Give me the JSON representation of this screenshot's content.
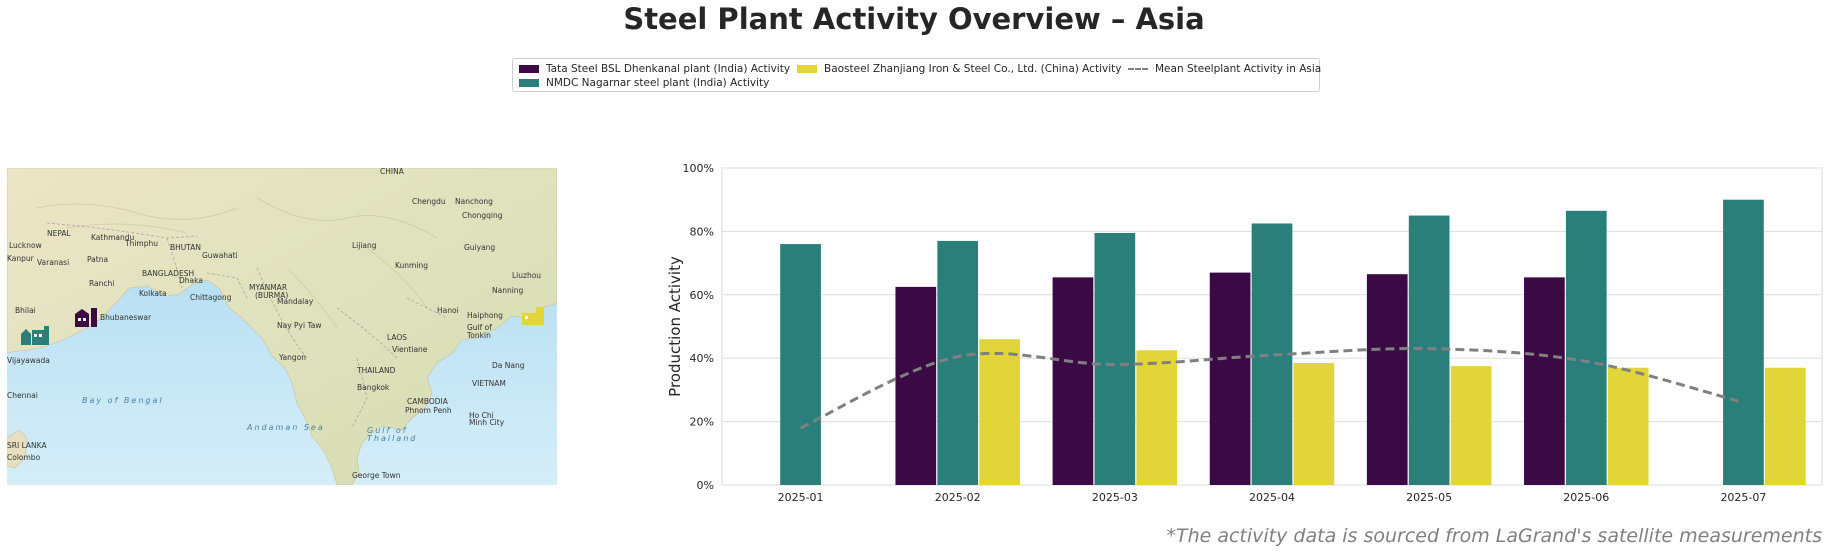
{
  "header": {
    "title": "Steel Plant Activity Overview – Asia"
  },
  "legend": {
    "items": [
      {
        "label": "Tata Steel BSL Dhenkanal plant (India) Activity",
        "color": "#3b0a45",
        "kind": "bar"
      },
      {
        "label": "NMDC Nagarnar steel plant (India) Activity",
        "color": "#2a7f7b",
        "kind": "bar"
      },
      {
        "label": "Baosteel Zhanjiang Iron & Steel Co., Ltd. (China) Activity",
        "color": "#e1d53a",
        "kind": "bar"
      },
      {
        "label": "Mean Steelplant Activity in Asia",
        "color": "#808080",
        "kind": "dashed-line"
      }
    ]
  },
  "map": {
    "labels": [
      "CHINA",
      "Chengdu",
      "Nanchong",
      "Chongqing",
      "NEPAL",
      "Kathmandu",
      "Thimphu",
      "BHUTAN",
      "Lucknow",
      "Kanpur",
      "Varanasi",
      "Patna",
      "Guwahati",
      "BANGLADESH",
      "Ranchi",
      "Dhaka",
      "Lijiang",
      "Kunming",
      "Guiyang",
      "Liuzhou",
      "Kolkata",
      "Chittagong",
      "MYANMAR (BURMA)",
      "Mandalay",
      "Nanning",
      "Bhilai",
      "Bhubaneswar",
      "Hanoi",
      "Haiphong",
      "Gulf of Tonkin",
      "Nay Pyi Taw",
      "LAOS",
      "Vientiane",
      "Yangon",
      "THAILAND",
      "Da Nang",
      "Bangkok",
      "VIETNAM",
      "CAMBODIA",
      "Phnom Penh",
      "Ho Chi Minh City",
      "Vijayawada",
      "Chennai",
      "Bay of Bengal",
      "Andaman Sea",
      "Gulf of Thailand",
      "George Town",
      "Colombo",
      "SRI LANKA"
    ],
    "markers": [
      {
        "plant": "NMDC Nagarnar steel plant (India)",
        "icon": "factory-icon",
        "color": "#2a7f7b"
      },
      {
        "plant": "Tata Steel BSL Dhenkanal plant (India)",
        "icon": "factory-icon",
        "color": "#3b0a45"
      },
      {
        "plant": "Baosteel Zhanjiang Iron & Steel Co., Ltd. (China)",
        "icon": "factory-icon",
        "color": "#e1d53a"
      }
    ]
  },
  "chart_data": {
    "type": "bar",
    "title": "",
    "xlabel": "",
    "ylabel": "Production Activity",
    "ylim": [
      0,
      100
    ],
    "y_ticks": [
      "0%",
      "20%",
      "40%",
      "60%",
      "80%",
      "100%"
    ],
    "categories": [
      "2025-01",
      "2025-02",
      "2025-03",
      "2025-04",
      "2025-05",
      "2025-06",
      "2025-07"
    ],
    "grid": "horizontal",
    "series": [
      {
        "name": "Tata Steel BSL Dhenkanal plant (India) Activity",
        "color": "#3b0a45",
        "values": [
          null,
          62.5,
          65.5,
          67,
          66.5,
          65.5,
          null
        ]
      },
      {
        "name": "NMDC Nagarnar steel plant (India) Activity",
        "color": "#2a7f7b",
        "values": [
          76,
          77,
          79.5,
          82.5,
          85,
          86.5,
          90
        ]
      },
      {
        "name": "Baosteel Zhanjiang Iron & Steel Co., Ltd. (China) Activity",
        "color": "#e1d53a",
        "values": [
          null,
          46,
          42.5,
          38.5,
          37.5,
          37,
          37
        ]
      }
    ],
    "mean_line": {
      "name": "Mean Steelplant Activity in Asia",
      "color": "#808080",
      "values": [
        18,
        40.5,
        38,
        41,
        43,
        39,
        26
      ]
    }
  },
  "footnote": {
    "text": "*The activity data is sourced from LaGrand's satellite measurements"
  }
}
